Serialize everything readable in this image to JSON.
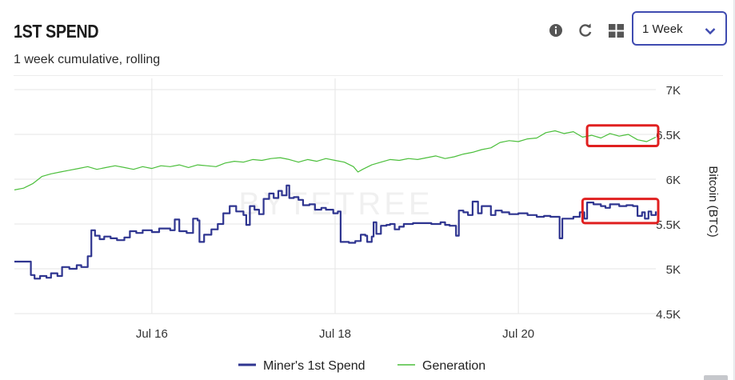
{
  "header": {
    "title": "1ST SPEND",
    "subtitle": "1 week cumulative, rolling",
    "period_select": {
      "value": "1 Week",
      "options": [
        "1 Week"
      ]
    }
  },
  "toolbar": {
    "icons": [
      "info-icon",
      "refresh-icon",
      "grid-icon"
    ]
  },
  "watermark": "BYTETREE",
  "colors": {
    "miner_series": "#2f3590",
    "generation_series": "#4cbf3c",
    "highlight_box": "#e02020",
    "select_border": "#3f4bb0"
  },
  "chart_data": {
    "type": "line",
    "title": "",
    "xlabel": "",
    "ylabel": "Bitcoin (BTC)",
    "x_tick_labels": [
      "Jul 16",
      "Jul 18",
      "Jul 20"
    ],
    "x_tick_positions_days": [
      16,
      18,
      20
    ],
    "xlim_days": [
      14.5,
      21.5
    ],
    "ylim": [
      4500,
      7000
    ],
    "y_ticks": [
      4500,
      5000,
      5500,
      6000,
      6500,
      7000
    ],
    "y_tick_labels": [
      "4.5K",
      "5K",
      "5.5K",
      "6K",
      "6.5K",
      "7K"
    ],
    "y_axis_side": "right",
    "grid": "vertical",
    "legend_position": "bottom-center",
    "series": [
      {
        "name": "Miner's 1st Spend",
        "color": "#2f3590",
        "style": "step",
        "points": [
          [
            14.5,
            5080
          ],
          [
            14.65,
            5080
          ],
          [
            14.68,
            4930
          ],
          [
            14.72,
            4890
          ],
          [
            14.78,
            4920
          ],
          [
            14.85,
            4900
          ],
          [
            14.9,
            4950
          ],
          [
            14.97,
            4920
          ],
          [
            15.02,
            5020
          ],
          [
            15.1,
            5000
          ],
          [
            15.18,
            5040
          ],
          [
            15.23,
            5020
          ],
          [
            15.3,
            5140
          ],
          [
            15.34,
            5430
          ],
          [
            15.38,
            5370
          ],
          [
            15.43,
            5330
          ],
          [
            15.48,
            5360
          ],
          [
            15.55,
            5340
          ],
          [
            15.62,
            5320
          ],
          [
            15.7,
            5350
          ],
          [
            15.76,
            5420
          ],
          [
            15.83,
            5400
          ],
          [
            15.9,
            5430
          ],
          [
            16.0,
            5410
          ],
          [
            16.08,
            5450
          ],
          [
            16.2,
            5430
          ],
          [
            16.25,
            5550
          ],
          [
            16.3,
            5420
          ],
          [
            16.38,
            5400
          ],
          [
            16.45,
            5560
          ],
          [
            16.5,
            5540
          ],
          [
            16.52,
            5300
          ],
          [
            16.57,
            5380
          ],
          [
            16.65,
            5440
          ],
          [
            16.72,
            5500
          ],
          [
            16.78,
            5620
          ],
          [
            16.85,
            5700
          ],
          [
            16.92,
            5640
          ],
          [
            17.0,
            5600
          ],
          [
            17.03,
            5490
          ],
          [
            17.07,
            5700
          ],
          [
            17.12,
            5660
          ],
          [
            17.17,
            5610
          ],
          [
            17.22,
            5780
          ],
          [
            17.28,
            5840
          ],
          [
            17.33,
            5790
          ],
          [
            17.38,
            5870
          ],
          [
            17.42,
            5820
          ],
          [
            17.47,
            5930
          ],
          [
            17.5,
            5790
          ],
          [
            17.55,
            5800
          ],
          [
            17.6,
            5770
          ],
          [
            17.65,
            5710
          ],
          [
            17.72,
            5720
          ],
          [
            17.78,
            5660
          ],
          [
            17.85,
            5680
          ],
          [
            17.9,
            5660
          ],
          [
            17.98,
            5620
          ],
          [
            18.03,
            5640
          ],
          [
            18.06,
            5300
          ],
          [
            18.15,
            5290
          ],
          [
            18.22,
            5310
          ],
          [
            18.28,
            5380
          ],
          [
            18.33,
            5370
          ],
          [
            18.35,
            5300
          ],
          [
            18.4,
            5360
          ],
          [
            18.42,
            5520
          ],
          [
            18.45,
            5390
          ],
          [
            18.5,
            5480
          ],
          [
            18.56,
            5490
          ],
          [
            18.6,
            5500
          ],
          [
            18.65,
            5440
          ],
          [
            18.7,
            5470
          ],
          [
            18.75,
            5500
          ],
          [
            18.85,
            5510
          ],
          [
            18.95,
            5510
          ],
          [
            19.05,
            5500
          ],
          [
            19.15,
            5520
          ],
          [
            19.2,
            5490
          ],
          [
            19.25,
            5480
          ],
          [
            19.32,
            5370
          ],
          [
            19.35,
            5650
          ],
          [
            19.4,
            5630
          ],
          [
            19.45,
            5600
          ],
          [
            19.5,
            5750
          ],
          [
            19.56,
            5620
          ],
          [
            19.6,
            5700
          ],
          [
            19.7,
            5600
          ],
          [
            19.75,
            5650
          ],
          [
            19.82,
            5630
          ],
          [
            19.9,
            5610
          ],
          [
            20.0,
            5620
          ],
          [
            20.1,
            5600
          ],
          [
            20.2,
            5580
          ],
          [
            20.28,
            5590
          ],
          [
            20.35,
            5580
          ],
          [
            20.45,
            5340
          ],
          [
            20.48,
            5560
          ],
          [
            20.6,
            5580
          ],
          [
            20.67,
            5630
          ],
          [
            20.72,
            5560
          ],
          [
            20.75,
            5740
          ],
          [
            20.82,
            5720
          ],
          [
            20.9,
            5700
          ],
          [
            20.95,
            5680
          ],
          [
            21.0,
            5720
          ],
          [
            21.1,
            5700
          ],
          [
            21.18,
            5710
          ],
          [
            21.25,
            5700
          ],
          [
            21.3,
            5590
          ],
          [
            21.35,
            5630
          ],
          [
            21.38,
            5560
          ],
          [
            21.42,
            5640
          ],
          [
            21.45,
            5600
          ],
          [
            21.5,
            5640
          ]
        ]
      },
      {
        "name": "Generation",
        "color": "#4cbf3c",
        "style": "line",
        "points": [
          [
            14.5,
            5880
          ],
          [
            14.6,
            5900
          ],
          [
            14.7,
            5950
          ],
          [
            14.8,
            6030
          ],
          [
            14.9,
            6060
          ],
          [
            15.0,
            6080
          ],
          [
            15.1,
            6100
          ],
          [
            15.2,
            6120
          ],
          [
            15.3,
            6140
          ],
          [
            15.4,
            6110
          ],
          [
            15.5,
            6130
          ],
          [
            15.6,
            6150
          ],
          [
            15.7,
            6130
          ],
          [
            15.8,
            6110
          ],
          [
            15.9,
            6140
          ],
          [
            16.0,
            6120
          ],
          [
            16.1,
            6150
          ],
          [
            16.2,
            6140
          ],
          [
            16.3,
            6160
          ],
          [
            16.4,
            6130
          ],
          [
            16.5,
            6160
          ],
          [
            16.6,
            6150
          ],
          [
            16.7,
            6140
          ],
          [
            16.8,
            6180
          ],
          [
            16.9,
            6200
          ],
          [
            17.0,
            6190
          ],
          [
            17.1,
            6220
          ],
          [
            17.2,
            6210
          ],
          [
            17.3,
            6230
          ],
          [
            17.4,
            6240
          ],
          [
            17.5,
            6220
          ],
          [
            17.6,
            6190
          ],
          [
            17.7,
            6220
          ],
          [
            17.8,
            6200
          ],
          [
            17.9,
            6230
          ],
          [
            18.0,
            6210
          ],
          [
            18.1,
            6190
          ],
          [
            18.2,
            6140
          ],
          [
            18.25,
            6080
          ],
          [
            18.3,
            6110
          ],
          [
            18.4,
            6160
          ],
          [
            18.5,
            6190
          ],
          [
            18.6,
            6220
          ],
          [
            18.7,
            6210
          ],
          [
            18.8,
            6230
          ],
          [
            18.9,
            6220
          ],
          [
            19.0,
            6240
          ],
          [
            19.1,
            6260
          ],
          [
            19.2,
            6230
          ],
          [
            19.3,
            6250
          ],
          [
            19.4,
            6280
          ],
          [
            19.5,
            6300
          ],
          [
            19.6,
            6330
          ],
          [
            19.7,
            6350
          ],
          [
            19.8,
            6410
          ],
          [
            19.9,
            6430
          ],
          [
            20.0,
            6420
          ],
          [
            20.1,
            6450
          ],
          [
            20.2,
            6460
          ],
          [
            20.3,
            6520
          ],
          [
            20.4,
            6540
          ],
          [
            20.5,
            6510
          ],
          [
            20.6,
            6530
          ],
          [
            20.7,
            6470
          ],
          [
            20.8,
            6490
          ],
          [
            20.9,
            6460
          ],
          [
            21.0,
            6510
          ],
          [
            21.1,
            6480
          ],
          [
            21.2,
            6500
          ],
          [
            21.3,
            6440
          ],
          [
            21.4,
            6420
          ],
          [
            21.5,
            6470
          ]
        ]
      }
    ],
    "annotations": [
      {
        "type": "rectangle",
        "color": "#e02020",
        "x_days": [
          20.75,
          21.55
        ],
        "y_range": [
          6370,
          6600
        ]
      },
      {
        "type": "rectangle",
        "color": "#e02020",
        "x_days": [
          20.7,
          21.55
        ],
        "y_range": [
          5510,
          5780
        ]
      }
    ]
  }
}
